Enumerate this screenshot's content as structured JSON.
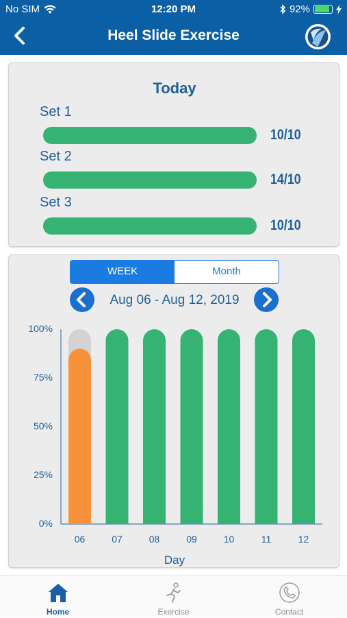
{
  "status_bar": {
    "carrier": "No SIM",
    "time": "12:20 PM",
    "battery": "92%",
    "battery_level": 0.92
  },
  "navbar": {
    "title": "Heel Slide Exercise"
  },
  "today": {
    "heading": "Today",
    "sets": [
      {
        "label": "Set 1",
        "value": "10/10",
        "progress": 1.0
      },
      {
        "label": "Set 2",
        "value": "14/10",
        "progress": 1.0
      },
      {
        "label": "Set 3",
        "value": "10/10",
        "progress": 1.0
      }
    ]
  },
  "period_toggle": {
    "week": "WEEK",
    "month": "Month",
    "selected": "WEEK"
  },
  "date_range": "Aug 06 - Aug 12, 2019",
  "colors": {
    "complete": "#36b373",
    "partial": "#f7923a",
    "remaining": "#d3d3d3",
    "brand": "#0b5fa5"
  },
  "chart_data": {
    "type": "bar",
    "categories": [
      "06",
      "07",
      "08",
      "09",
      "10",
      "11",
      "12"
    ],
    "values": [
      90,
      100,
      100,
      100,
      100,
      100,
      100
    ],
    "y_ticks": [
      "0%",
      "25%",
      "50%",
      "75%",
      "100%"
    ],
    "ylim": [
      0,
      100
    ],
    "xlabel": "Day",
    "ylabel": ""
  },
  "tabbar": {
    "items": [
      {
        "label": "Home",
        "icon": "home-icon",
        "active": true
      },
      {
        "label": "Exercise",
        "icon": "runner-icon",
        "active": false
      },
      {
        "label": "Contact",
        "icon": "phone-icon",
        "active": false
      }
    ]
  }
}
